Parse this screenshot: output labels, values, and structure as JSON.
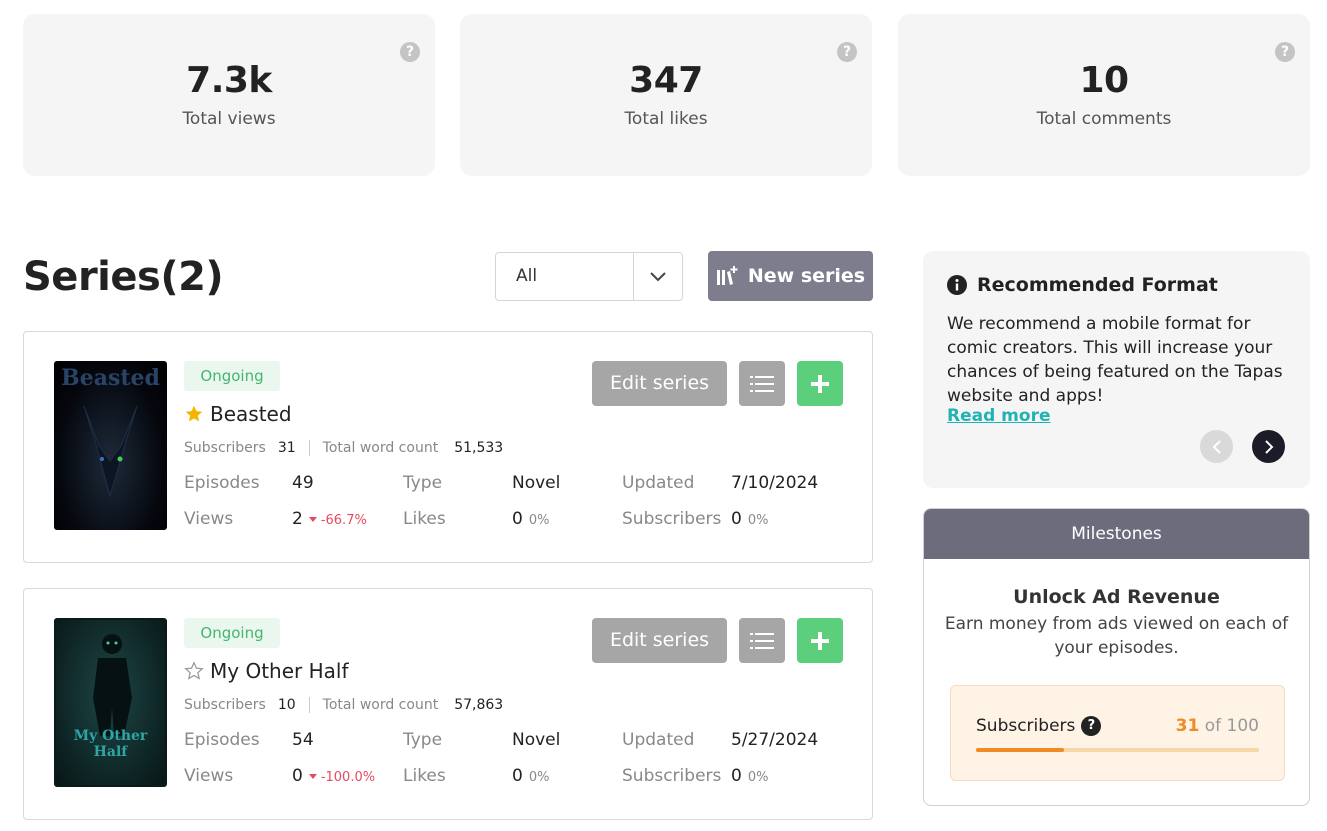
{
  "stats": [
    {
      "value": "7.3k",
      "label": "Total views"
    },
    {
      "value": "347",
      "label": "Total likes"
    },
    {
      "value": "10",
      "label": "Total comments"
    }
  ],
  "series_header": {
    "title": "Series(2)",
    "filter_value": "All",
    "new_series_label": "New series"
  },
  "series": [
    {
      "status": "Ongoing",
      "name": "Beasted",
      "starred": true,
      "cover_text": "Beasted",
      "subscribers_label": "Subscribers",
      "subscribers": "31",
      "word_count_label": "Total word count",
      "word_count": "51,533",
      "episodes_label": "Episodes",
      "episodes": "49",
      "type_label": "Type",
      "type": "Novel",
      "updated_label": "Updated",
      "updated": "7/10/2024",
      "views_label": "Views",
      "views": "2",
      "views_delta": "-66.7%",
      "likes_label": "Likes",
      "likes": "0",
      "likes_delta": "0%",
      "subs_label": "Subscribers",
      "subs": "0",
      "subs_delta": "0%",
      "edit_label": "Edit series"
    },
    {
      "status": "Ongoing",
      "name": "My Other Half",
      "starred": false,
      "cover_text": "My Other Half",
      "subscribers_label": "Subscribers",
      "subscribers": "10",
      "word_count_label": "Total word count",
      "word_count": "57,863",
      "episodes_label": "Episodes",
      "episodes": "54",
      "type_label": "Type",
      "type": "Novel",
      "updated_label": "Updated",
      "updated": "5/27/2024",
      "views_label": "Views",
      "views": "0",
      "views_delta": "-100.0%",
      "likes_label": "Likes",
      "likes": "0",
      "likes_delta": "0%",
      "subs_label": "Subscribers",
      "subs": "0",
      "subs_delta": "0%",
      "edit_label": "Edit series"
    }
  ],
  "recommended": {
    "title": "Recommended Format",
    "body": "We recommend a mobile format for comic creators. This will increase your chances of being featured on the Tapas website and apps!",
    "link": "Read more"
  },
  "milestones": {
    "header": "Milestones",
    "title": "Unlock Ad Revenue",
    "description": "Earn money from ads viewed on each of your episodes.",
    "metric_label": "Subscribers",
    "current": "31",
    "of_text": "of 100",
    "progress": 0.31
  },
  "colors": {
    "accent_green": "#5ccf7c",
    "accent_teal": "#1fb3b3",
    "accent_orange": "#f08a24",
    "negative": "#e64a5f"
  }
}
